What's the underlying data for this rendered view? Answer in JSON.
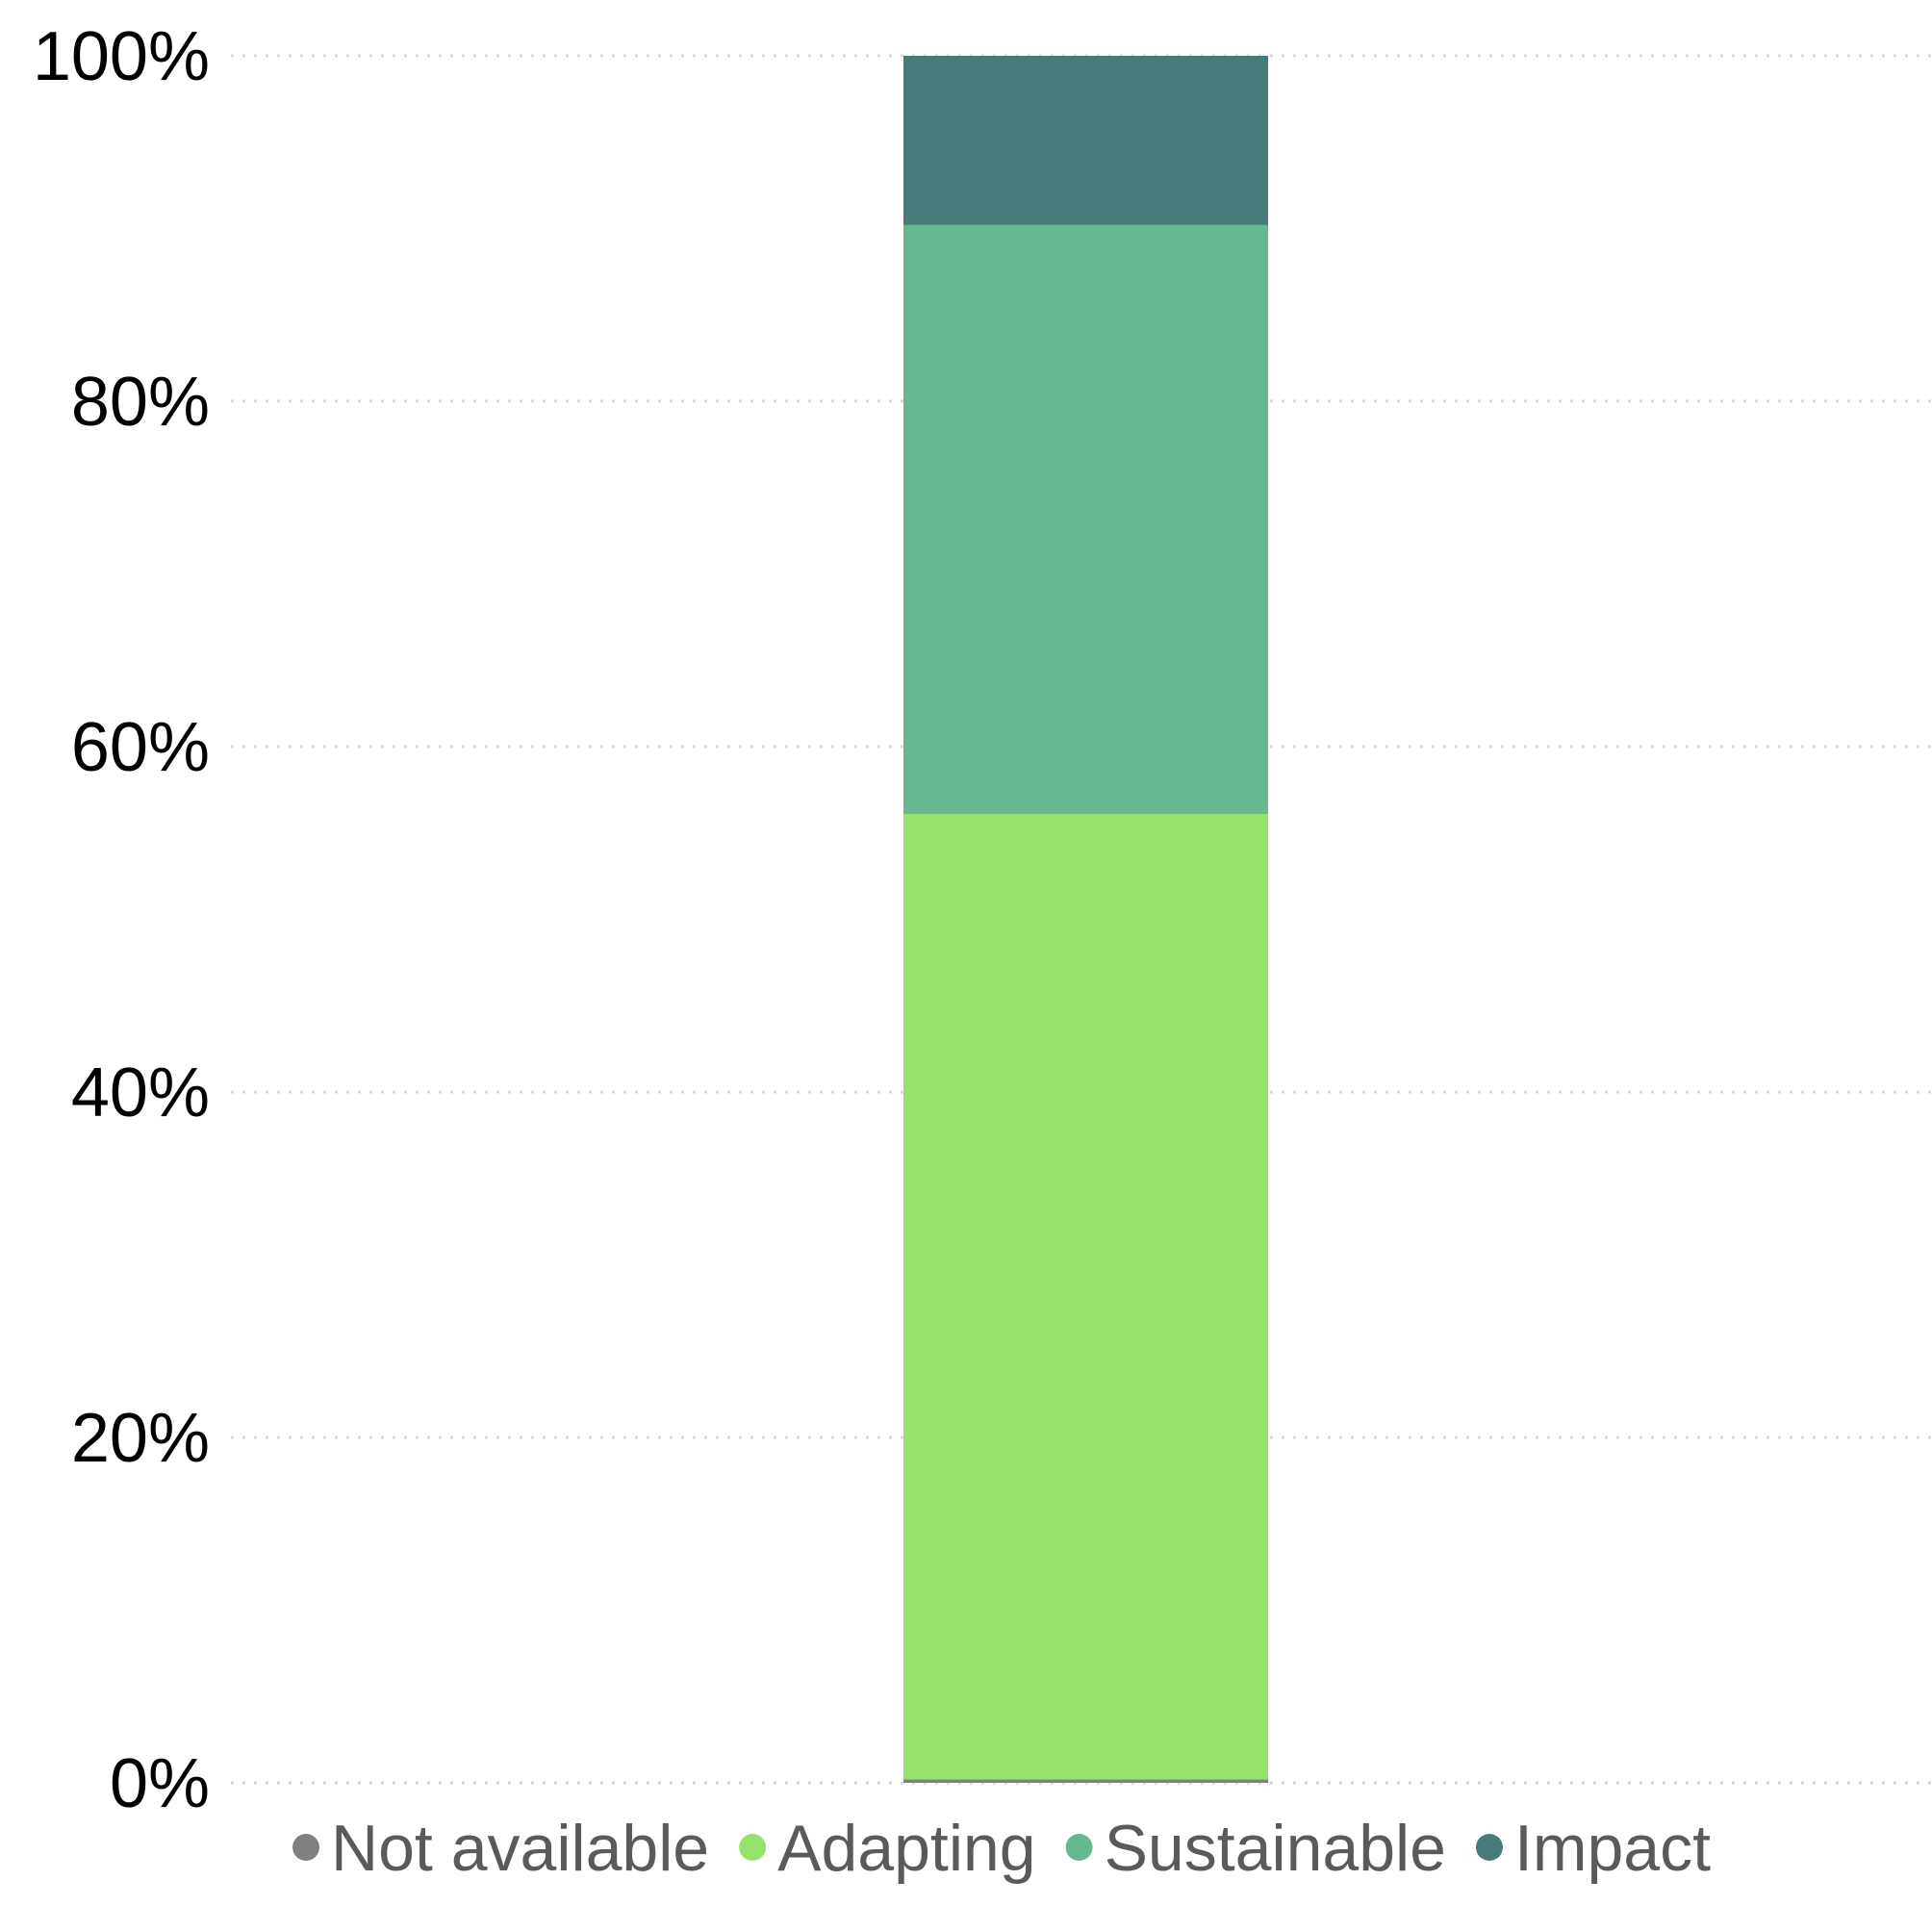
{
  "chart_data": {
    "type": "bar",
    "stacked": true,
    "categories": [
      ""
    ],
    "y_ticks": [
      "0%",
      "20%",
      "40%",
      "60%",
      "80%",
      "100%"
    ],
    "ylim": [
      0,
      100
    ],
    "grid": true,
    "legend_position": "bottom",
    "series": [
      {
        "name": "Not available",
        "values": [
          0.2
        ],
        "color": "#808080"
      },
      {
        "name": "Adapting",
        "values": [
          55.9
        ],
        "color": "#95e36b"
      },
      {
        "name": "Sustainable",
        "values": [
          34.1
        ],
        "color": "#66b893"
      },
      {
        "name": "Impact",
        "values": [
          9.8
        ],
        "color": "#467b79"
      }
    ]
  }
}
